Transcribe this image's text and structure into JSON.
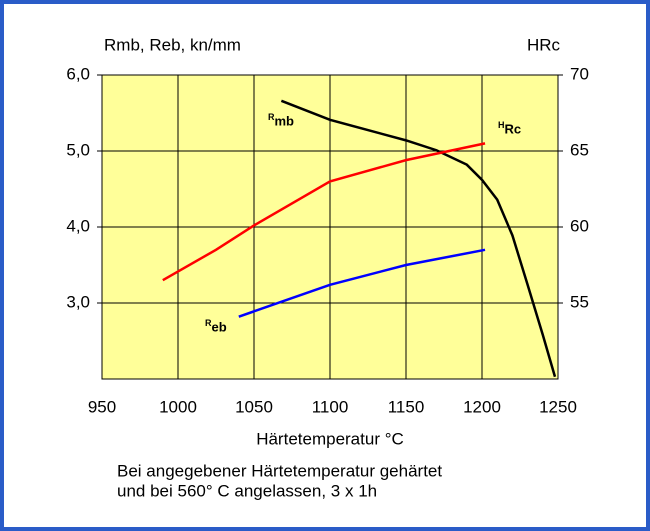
{
  "chart_data": {
    "type": "line",
    "y_label": "Rmb, Reb, kn/mm",
    "y2_label": "HRc",
    "x_label": "Härtetemperatur °C",
    "note": [
      "Bei angegebener Härtetemperatur gehärtet",
      "und bei 560° C angelassen, 3 x 1h"
    ],
    "xlim": [
      950,
      1250
    ],
    "xticks": [
      950,
      1000,
      1050,
      1100,
      1150,
      1200,
      1250
    ],
    "ylim": [
      2,
      6
    ],
    "yticks": [
      {
        "value": 3,
        "label": "3,0"
      },
      {
        "value": 4,
        "label": "4,0"
      },
      {
        "value": 5,
        "label": "5,0"
      },
      {
        "value": 6,
        "label": "6,0"
      }
    ],
    "y2lim": [
      50,
      70
    ],
    "y2ticks": [
      55,
      60,
      65,
      70
    ],
    "grid": true,
    "series": [
      {
        "name": "Rmb",
        "color": "#000000",
        "axis": "y",
        "x": [
          1068,
          1100,
          1150,
          1170,
          1190,
          1200,
          1210,
          1220,
          1230,
          1240,
          1248
        ],
        "values": [
          5.66,
          5.41,
          5.14,
          5.01,
          4.82,
          4.62,
          4.36,
          3.89,
          3.24,
          2.58,
          2.03
        ]
      },
      {
        "name": "HRc",
        "color": "#ff0000",
        "axis": "y2",
        "x": [
          990,
          1025,
          1050,
          1100,
          1150,
          1202
        ],
        "values": [
          56.5,
          58.5,
          60.1,
          63.0,
          64.4,
          65.5
        ]
      },
      {
        "name": "Reb",
        "color": "#0000ff",
        "axis": "y",
        "x": [
          1040,
          1100,
          1150,
          1202
        ],
        "values": [
          2.82,
          3.24,
          3.5,
          3.7
        ]
      }
    ]
  }
}
